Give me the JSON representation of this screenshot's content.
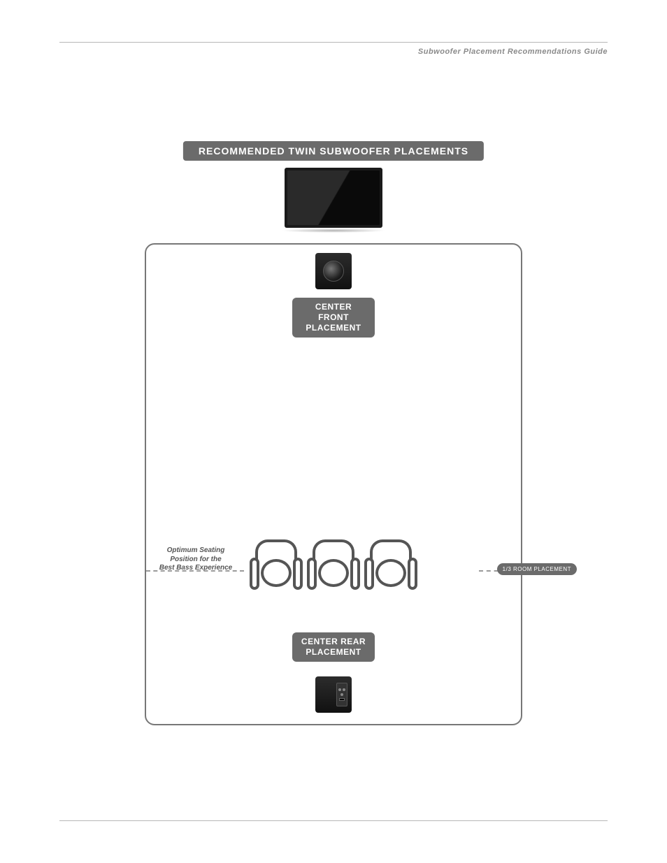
{
  "header": {
    "title": "Subwoofer Placement Recommendations Guide"
  },
  "diagram": {
    "banner": "RECOMMENDED TWIN SUBWOOFER PLACEMENTS",
    "labels": {
      "center_front_l1": "CENTER FRONT",
      "center_front_l2": "PLACEMENT",
      "center_rear_l1": "CENTER REAR",
      "center_rear_l2": "PLACEMENT",
      "one_third": "1/3 ROOM PLACEMENT"
    },
    "seating_note": {
      "l1": "Optimum Seating",
      "l2": "Position for the",
      "l3": "Best Bass Experience"
    },
    "colors": {
      "pill_bg": "#6b6b6b",
      "pill_text": "#ffffff",
      "room_border": "#777777",
      "dash": "#9a9a9a",
      "note_text": "#555555",
      "header_text": "#8a8a8a",
      "rule": "#b7b7b7"
    },
    "layout": {
      "seating_row_fraction_from_bottom": 0.333,
      "sofa_count": 3
    }
  }
}
